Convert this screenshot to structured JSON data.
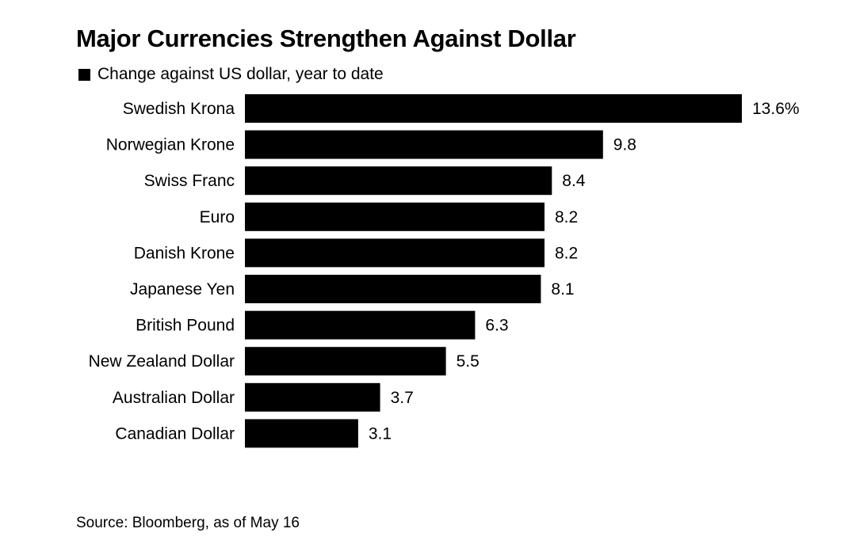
{
  "title": "Major Currencies Strengthen Against Dollar",
  "legend_label": "Change against US dollar, year to date",
  "source": "Source: Bloomberg, as of May 16",
  "colors": {
    "bar": "#000000",
    "text": "#000000",
    "background": "#ffffff"
  },
  "chart_data": {
    "type": "bar",
    "orientation": "horizontal",
    "title": "Major Currencies Strengthen Against Dollar",
    "categories": [
      "Swedish Krona",
      "Norwegian Krone",
      "Swiss Franc",
      "Euro",
      "Danish Krone",
      "Japanese Yen",
      "British Pound",
      "New Zealand Dollar",
      "Australian Dollar",
      "Canadian Dollar"
    ],
    "series": [
      {
        "name": "Change against US dollar, year to date",
        "values": [
          13.6,
          9.8,
          8.4,
          8.2,
          8.2,
          8.1,
          6.3,
          5.5,
          3.7,
          3.1
        ]
      }
    ],
    "data_labels": [
      "13.6%",
      "9.8",
      "8.4",
      "8.2",
      "8.2",
      "8.1",
      "6.3",
      "5.5",
      "3.7",
      "3.1"
    ],
    "xlim": [
      0,
      13.6
    ],
    "grid": false,
    "legend_position": "top-left"
  }
}
